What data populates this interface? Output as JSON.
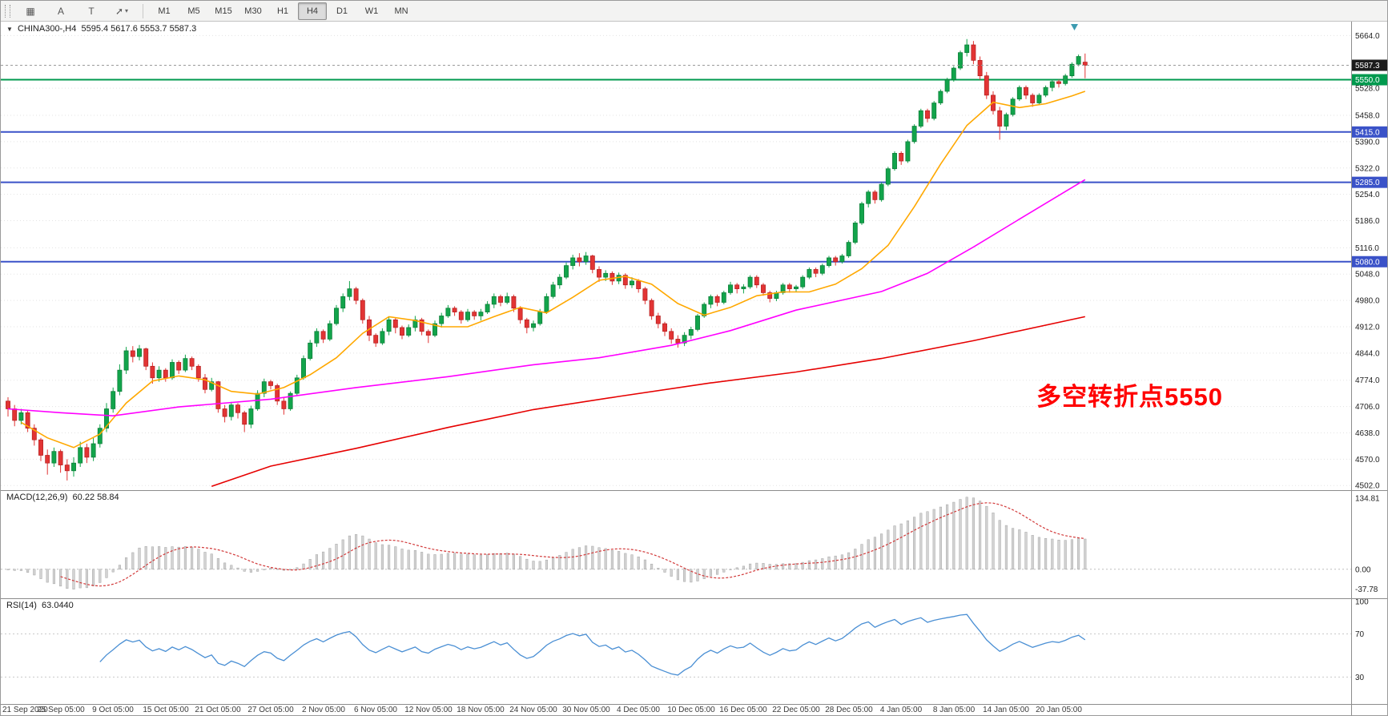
{
  "toolbar": {
    "tool_buttons": [
      {
        "name": "grid-icon",
        "glyph": "▦"
      },
      {
        "name": "text-label-icon",
        "glyph": "A"
      },
      {
        "name": "text-box-icon",
        "glyph": "T"
      },
      {
        "name": "draw-arrow-icon",
        "glyph": "➚",
        "caret": "▾"
      }
    ],
    "timeframes": [
      "M1",
      "M5",
      "M15",
      "M30",
      "H1",
      "H4",
      "D1",
      "W1",
      "MN"
    ],
    "active_timeframe": "H4"
  },
  "chart": {
    "info": {
      "symbol": "CHINA300-,H4",
      "ohlc": "5595.4 5617.6 5553.7 5587.3"
    },
    "annotation": {
      "text": "多空转折点5550",
      "color": "#FF0000"
    }
  },
  "macd_panel": {
    "title": "MACD(12,26,9)",
    "values": "60.22 58.84"
  },
  "rsi_panel": {
    "title": "RSI(14)",
    "value": "63.0440"
  },
  "chart_data": {
    "type": "candlestick",
    "symbol": "CHINA300-",
    "timeframe": "H4",
    "ohlc_display": {
      "open": 5595.4,
      "high": 5617.6,
      "low": 5553.7,
      "close": 5587.3
    },
    "ylim": [
      4490,
      5700
    ],
    "price_axis_labels": [
      "5664.0",
      "5528.0",
      "5458.0",
      "5390.0",
      "5322.0",
      "5254.0",
      "5186.0",
      "5116.0",
      "5048.0",
      "4980.0",
      "4912.0",
      "4844.0",
      "4774.0",
      "4706.0",
      "4638.0",
      "4570.0",
      "4502.0"
    ],
    "hlines": [
      {
        "price": 5550.0,
        "label": "5550.0",
        "color": "#009A4E"
      },
      {
        "price": 5415.0,
        "label": "5415.0",
        "color": "#3A52C8"
      },
      {
        "price": 5285.0,
        "label": "5285.0",
        "color": "#3A52C8"
      },
      {
        "price": 5080.0,
        "label": "5080.0",
        "color": "#3A52C8"
      }
    ],
    "current_price": {
      "price": 5587.3,
      "label": "5587.3",
      "color": "#1c1c1c"
    },
    "bars_per_tick": 8,
    "x_tick_labels": [
      "21 Sep 2020",
      "25 Sep 05:00",
      "9 Oct 05:00",
      "15 Oct 05:00",
      "21 Oct 05:00",
      "27 Oct 05:00",
      "2 Nov 05:00",
      "6 Nov 05:00",
      "12 Nov 05:00",
      "18 Nov 05:00",
      "24 Nov 05:00",
      "30 Nov 05:00",
      "4 Dec 05:00",
      "10 Dec 05:00",
      "16 Dec 05:00",
      "22 Dec 05:00",
      "28 Dec 05:00",
      "4 Jan 05:00",
      "8 Jan 05:00",
      "14 Jan 05:00",
      "20 Jan 05:00"
    ],
    "candles": [
      [
        4720,
        4730,
        4680,
        4700
      ],
      [
        4700,
        4710,
        4655,
        4670
      ],
      [
        4670,
        4700,
        4660,
        4690
      ],
      [
        4690,
        4695,
        4640,
        4650
      ],
      [
        4650,
        4660,
        4605,
        4620
      ],
      [
        4620,
        4625,
        4565,
        4580
      ],
      [
        4580,
        4595,
        4530,
        4560
      ],
      [
        4560,
        4600,
        4550,
        4590
      ],
      [
        4590,
        4595,
        4535,
        4555
      ],
      [
        4555,
        4570,
        4515,
        4540
      ],
      [
        4540,
        4575,
        4525,
        4560
      ],
      [
        4560,
        4615,
        4550,
        4600
      ],
      [
        4600,
        4610,
        4560,
        4575
      ],
      [
        4575,
        4625,
        4565,
        4610
      ],
      [
        4610,
        4660,
        4600,
        4650
      ],
      [
        4650,
        4715,
        4640,
        4700
      ],
      [
        4700,
        4755,
        4690,
        4745
      ],
      [
        4745,
        4815,
        4735,
        4800
      ],
      [
        4800,
        4860,
        4790,
        4850
      ],
      [
        4850,
        4862,
        4820,
        4835
      ],
      [
        4835,
        4865,
        4825,
        4855
      ],
      [
        4855,
        4858,
        4800,
        4810
      ],
      [
        4810,
        4820,
        4765,
        4780
      ],
      [
        4780,
        4810,
        4770,
        4800
      ],
      [
        4800,
        4805,
        4770,
        4780
      ],
      [
        4780,
        4828,
        4775,
        4820
      ],
      [
        4820,
        4825,
        4790,
        4800
      ],
      [
        4800,
        4840,
        4795,
        4830
      ],
      [
        4830,
        4835,
        4800,
        4810
      ],
      [
        4810,
        4815,
        4770,
        4780
      ],
      [
        4780,
        4790,
        4740,
        4750
      ],
      [
        4750,
        4780,
        4745,
        4770
      ],
      [
        4770,
        4772,
        4690,
        4700
      ],
      [
        4700,
        4710,
        4665,
        4680
      ],
      [
        4680,
        4718,
        4670,
        4710
      ],
      [
        4710,
        4715,
        4675,
        4690
      ],
      [
        4690,
        4695,
        4640,
        4660
      ],
      [
        4660,
        4708,
        4650,
        4700
      ],
      [
        4700,
        4748,
        4695,
        4740
      ],
      [
        4740,
        4778,
        4730,
        4770
      ],
      [
        4770,
        4775,
        4750,
        4760
      ],
      [
        4760,
        4765,
        4710,
        4720
      ],
      [
        4720,
        4730,
        4685,
        4700
      ],
      [
        4700,
        4745,
        4695,
        4740
      ],
      [
        4740,
        4788,
        4735,
        4780
      ],
      [
        4780,
        4838,
        4775,
        4830
      ],
      [
        4830,
        4878,
        4825,
        4870
      ],
      [
        4870,
        4908,
        4860,
        4900
      ],
      [
        4900,
        4905,
        4870,
        4880
      ],
      [
        4880,
        4928,
        4875,
        4920
      ],
      [
        4920,
        4968,
        4915,
        4960
      ],
      [
        4960,
        4998,
        4950,
        4990
      ],
      [
        4990,
        5030,
        4980,
        5010
      ],
      [
        5010,
        5015,
        4970,
        4980
      ],
      [
        4980,
        4985,
        4920,
        4930
      ],
      [
        4930,
        4940,
        4875,
        4890
      ],
      [
        4890,
        4895,
        4860,
        4870
      ],
      [
        4870,
        4908,
        4865,
        4900
      ],
      [
        4900,
        4938,
        4890,
        4930
      ],
      [
        4930,
        4935,
        4895,
        4910
      ],
      [
        4910,
        4915,
        4880,
        4890
      ],
      [
        4890,
        4918,
        4885,
        4910
      ],
      [
        4910,
        4940,
        4900,
        4930
      ],
      [
        4930,
        4935,
        4890,
        4900
      ],
      [
        4900,
        4905,
        4870,
        4890
      ],
      [
        4890,
        4928,
        4885,
        4920
      ],
      [
        4920,
        4948,
        4910,
        4940
      ],
      [
        4940,
        4968,
        4935,
        4960
      ],
      [
        4960,
        4965,
        4940,
        4950
      ],
      [
        4950,
        4955,
        4920,
        4930
      ],
      [
        4930,
        4958,
        4925,
        4950
      ],
      [
        4950,
        4955,
        4930,
        4940
      ],
      [
        4940,
        4958,
        4928,
        4950
      ],
      [
        4950,
        4978,
        4945,
        4970
      ],
      [
        4970,
        4998,
        4960,
        4990
      ],
      [
        4990,
        4995,
        4965,
        4975
      ],
      [
        4975,
        5000,
        4970,
        4990
      ],
      [
        4990,
        4995,
        4950,
        4960
      ],
      [
        4960,
        4965,
        4920,
        4930
      ],
      [
        4930,
        4935,
        4895,
        4910
      ],
      [
        4910,
        4928,
        4900,
        4920
      ],
      [
        4920,
        4958,
        4915,
        4950
      ],
      [
        4950,
        4998,
        4945,
        4990
      ],
      [
        4990,
        5028,
        4985,
        5020
      ],
      [
        5020,
        5048,
        5010,
        5040
      ],
      [
        5040,
        5078,
        5035,
        5070
      ],
      [
        5070,
        5098,
        5060,
        5090
      ],
      [
        5090,
        5102,
        5068,
        5080
      ],
      [
        5080,
        5105,
        5072,
        5095
      ],
      [
        5095,
        5098,
        5050,
        5060
      ],
      [
        5060,
        5068,
        5028,
        5040
      ],
      [
        5040,
        5058,
        5030,
        5050
      ],
      [
        5050,
        5055,
        5020,
        5030
      ],
      [
        5030,
        5052,
        5022,
        5045
      ],
      [
        5045,
        5050,
        5010,
        5020
      ],
      [
        5020,
        5040,
        5012,
        5030
      ],
      [
        5030,
        5035,
        5000,
        5010
      ],
      [
        5010,
        5015,
        4970,
        4980
      ],
      [
        4980,
        4985,
        4930,
        4940
      ],
      [
        4940,
        4948,
        4908,
        4920
      ],
      [
        4920,
        4925,
        4888,
        4900
      ],
      [
        4900,
        4908,
        4868,
        4880
      ],
      [
        4880,
        4890,
        4858,
        4870
      ],
      [
        4870,
        4898,
        4862,
        4890
      ],
      [
        4890,
        4912,
        4880,
        4905
      ],
      [
        4905,
        4945,
        4900,
        4940
      ],
      [
        4940,
        4975,
        4935,
        4970
      ],
      [
        4970,
        4995,
        4960,
        4990
      ],
      [
        4990,
        4995,
        4965,
        4975
      ],
      [
        4975,
        5005,
        4970,
        5000
      ],
      [
        5000,
        5028,
        4995,
        5020
      ],
      [
        5020,
        5025,
        4998,
        5010
      ],
      [
        5010,
        5022,
        4998,
        5015
      ],
      [
        5015,
        5045,
        5010,
        5040
      ],
      [
        5040,
        5045,
        5012,
        5020
      ],
      [
        5020,
        5025,
        4992,
        5000
      ],
      [
        5000,
        5005,
        4975,
        4985
      ],
      [
        4985,
        5005,
        4978,
        5000
      ],
      [
        5000,
        5025,
        4995,
        5020
      ],
      [
        5020,
        5025,
        5000,
        5010
      ],
      [
        5010,
        5020,
        5002,
        5015
      ],
      [
        5015,
        5045,
        5010,
        5040
      ],
      [
        5040,
        5065,
        5035,
        5060
      ],
      [
        5060,
        5065,
        5040,
        5050
      ],
      [
        5050,
        5075,
        5045,
        5070
      ],
      [
        5070,
        5095,
        5065,
        5090
      ],
      [
        5090,
        5095,
        5070,
        5080
      ],
      [
        5080,
        5100,
        5075,
        5095
      ],
      [
        5095,
        5135,
        5090,
        5130
      ],
      [
        5130,
        5185,
        5125,
        5180
      ],
      [
        5180,
        5235,
        5175,
        5230
      ],
      [
        5230,
        5265,
        5220,
        5260
      ],
      [
        5260,
        5265,
        5230,
        5240
      ],
      [
        5240,
        5285,
        5235,
        5280
      ],
      [
        5280,
        5325,
        5275,
        5320
      ],
      [
        5320,
        5365,
        5315,
        5360
      ],
      [
        5360,
        5365,
        5330,
        5340
      ],
      [
        5340,
        5395,
        5335,
        5390
      ],
      [
        5390,
        5435,
        5385,
        5430
      ],
      [
        5430,
        5475,
        5425,
        5470
      ],
      [
        5470,
        5475,
        5440,
        5450
      ],
      [
        5450,
        5495,
        5445,
        5490
      ],
      [
        5490,
        5525,
        5485,
        5520
      ],
      [
        5520,
        5555,
        5515,
        5550
      ],
      [
        5550,
        5585,
        5545,
        5580
      ],
      [
        5580,
        5625,
        5575,
        5620
      ],
      [
        5620,
        5655,
        5610,
        5640
      ],
      [
        5640,
        5650,
        5590,
        5600
      ],
      [
        5600,
        5610,
        5550,
        5560
      ],
      [
        5560,
        5570,
        5500,
        5510
      ],
      [
        5510,
        5520,
        5460,
        5470
      ],
      [
        5470,
        5480,
        5395,
        5430
      ],
      [
        5430,
        5465,
        5420,
        5460
      ],
      [
        5460,
        5505,
        5455,
        5500
      ],
      [
        5500,
        5535,
        5495,
        5530
      ],
      [
        5530,
        5535,
        5500,
        5510
      ],
      [
        5510,
        5515,
        5480,
        5490
      ],
      [
        5490,
        5515,
        5485,
        5510
      ],
      [
        5510,
        5535,
        5505,
        5530
      ],
      [
        5530,
        5550,
        5520,
        5545
      ],
      [
        5545,
        5550,
        5530,
        5540
      ],
      [
        5540,
        5565,
        5535,
        5560
      ],
      [
        5560,
        5595,
        5555,
        5590
      ],
      [
        5590,
        5615,
        5585,
        5610
      ],
      [
        5595.4,
        5617.6,
        5553.7,
        5587.3
      ]
    ],
    "overlays": [
      {
        "name": "ma-fast",
        "color": "#FFA800",
        "points": [
          [
            2,
            4665
          ],
          [
            6,
            4625
          ],
          [
            10,
            4600
          ],
          [
            14,
            4635
          ],
          [
            18,
            4715
          ],
          [
            22,
            4772
          ],
          [
            26,
            4785
          ],
          [
            30,
            4775
          ],
          [
            34,
            4745
          ],
          [
            38,
            4738
          ],
          [
            42,
            4755
          ],
          [
            46,
            4788
          ],
          [
            50,
            4832
          ],
          [
            54,
            4895
          ],
          [
            58,
            4938
          ],
          [
            62,
            4928
          ],
          [
            66,
            4912
          ],
          [
            70,
            4912
          ],
          [
            74,
            4938
          ],
          [
            78,
            4962
          ],
          [
            82,
            4948
          ],
          [
            86,
            4988
          ],
          [
            90,
            5032
          ],
          [
            94,
            5042
          ],
          [
            98,
            5022
          ],
          [
            102,
            4972
          ],
          [
            106,
            4942
          ],
          [
            110,
            4962
          ],
          [
            114,
            4992
          ],
          [
            118,
            5002
          ],
          [
            122,
            5002
          ],
          [
            126,
            5022
          ],
          [
            130,
            5062
          ],
          [
            134,
            5122
          ],
          [
            138,
            5222
          ],
          [
            142,
            5332
          ],
          [
            146,
            5432
          ],
          [
            150,
            5492
          ],
          [
            154,
            5478
          ],
          [
            158,
            5488
          ],
          [
            162,
            5508
          ],
          [
            164,
            5520
          ]
        ]
      },
      {
        "name": "ma-mid",
        "color": "#FF00FF",
        "points": [
          [
            0,
            4700
          ],
          [
            8,
            4690
          ],
          [
            16,
            4682
          ],
          [
            26,
            4705
          ],
          [
            40,
            4725
          ],
          [
            53,
            4755
          ],
          [
            67,
            4783
          ],
          [
            80,
            4814
          ],
          [
            90,
            4832
          ],
          [
            101,
            4864
          ],
          [
            110,
            4902
          ],
          [
            120,
            4955
          ],
          [
            133,
            5003
          ],
          [
            140,
            5050
          ],
          [
            147,
            5118
          ],
          [
            155,
            5200
          ],
          [
            164,
            5292
          ]
        ]
      },
      {
        "name": "ma-slow",
        "color": "#E60000",
        "points": [
          [
            31,
            4500
          ],
          [
            40,
            4552
          ],
          [
            53,
            4598
          ],
          [
            67,
            4652
          ],
          [
            80,
            4698
          ],
          [
            93,
            4732
          ],
          [
            107,
            4767
          ],
          [
            120,
            4795
          ],
          [
            133,
            4830
          ],
          [
            147,
            4876
          ],
          [
            164,
            4938
          ]
        ]
      }
    ],
    "macd": {
      "params": [
        12,
        26,
        9
      ],
      "value": 60.22,
      "signal_value": 58.84,
      "ylim": [
        -55,
        150
      ],
      "axis_labels": [
        "134.81",
        "0.00",
        "-37.78"
      ]
    },
    "rsi": {
      "period": 14,
      "value": 63.044,
      "ylim": [
        5,
        103
      ],
      "axis_labels": [
        "100",
        "70",
        "30"
      ],
      "levels": [
        70,
        30
      ]
    }
  }
}
